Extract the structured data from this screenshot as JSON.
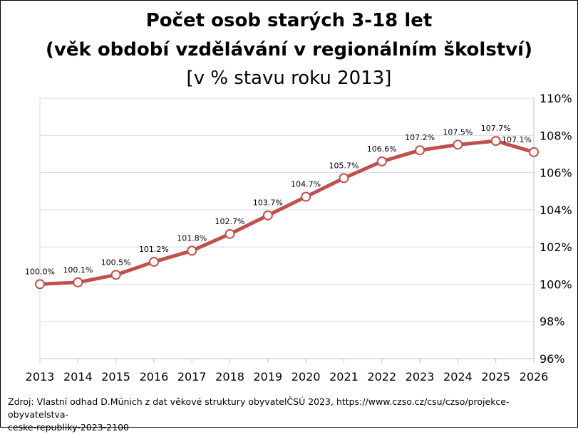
{
  "header": {
    "title_line1": "Počet osob starých 3-18 let",
    "title_line2": "(věk období vzdělávání v regionálním školství)",
    "subtitle": "[v % stavu roku 2013]"
  },
  "chart_data": {
    "type": "line",
    "x": [
      "2013",
      "2014",
      "2015",
      "2016",
      "2017",
      "2018",
      "2019",
      "2020",
      "2021",
      "2022",
      "2023",
      "2024",
      "2025",
      "2026"
    ],
    "series": [
      {
        "values": [
          100.0,
          100.1,
          100.5,
          101.2,
          101.8,
          102.7,
          103.7,
          104.7,
          105.7,
          106.6,
          107.2,
          107.5,
          107.7,
          107.1
        ],
        "labels": [
          "100.0%",
          "100.1%",
          "100.5%",
          "101.2%",
          "101.8%",
          "102.7%",
          "103.7%",
          "104.7%",
          "105.7%",
          "106.6%",
          "107.2%",
          "107.5%",
          "107.7%",
          "107.1%"
        ],
        "color": "#c0504d"
      }
    ],
    "ylim": [
      96,
      110
    ],
    "yticks": [
      96,
      98,
      100,
      102,
      104,
      106,
      108,
      110
    ],
    "ytick_labels": [
      "96%",
      "98%",
      "100%",
      "102%",
      "104%",
      "106%",
      "108%",
      "110%"
    ],
    "y_axis_side": "right",
    "grid": true,
    "legend": "none"
  },
  "footer": {
    "source_line1": "Zdroj: Vlastní odhad D.Münich z dat věkové struktury obyvatelČSÚ 2023, https://www.czso.cz/csu/czso/projekce-obyvatelstva-",
    "source_line2": "ceske-republiky-2023-2100"
  }
}
